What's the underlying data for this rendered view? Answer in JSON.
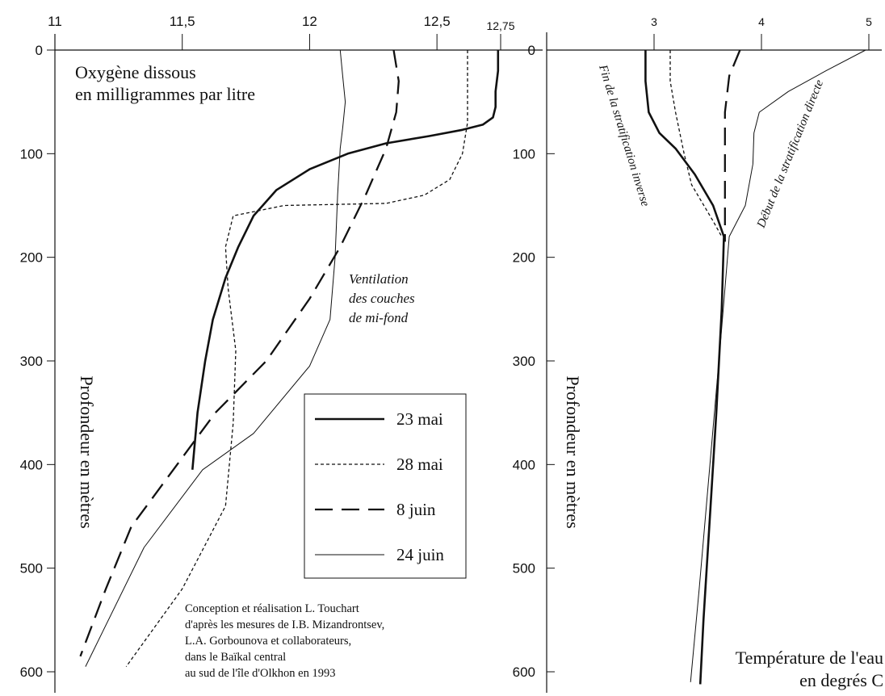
{
  "chart_data": [
    {
      "type": "line",
      "title": "Oxygène dissous\nen milligrammes par litre",
      "title_lines": [
        "Oxygène dissous",
        "en milligrammes par litre"
      ],
      "ylabel": "Profondeur en mètres",
      "xlim": [
        11,
        12.75
      ],
      "ylim": [
        0,
        620
      ],
      "y_inverted": true,
      "x_axis_position": "top",
      "x_ticks": [
        11,
        11.5,
        12,
        12.5,
        12.75
      ],
      "x_tick_labels": [
        "11",
        "11,5",
        "12",
        "12,5",
        "12,75"
      ],
      "y_ticks": [
        0,
        100,
        200,
        300,
        400,
        500,
        600
      ],
      "y_tick_labels": [
        "0",
        "100",
        "200",
        "300",
        "400",
        "500",
        "600"
      ],
      "grid": false,
      "legend_position": "center-right",
      "series": [
        {
          "name": "23 mai",
          "style": "thick-solid",
          "points": [
            [
              12.74,
              0
            ],
            [
              12.74,
              20
            ],
            [
              12.73,
              40
            ],
            [
              12.73,
              55
            ],
            [
              12.72,
              65
            ],
            [
              12.68,
              72
            ],
            [
              12.6,
              77
            ],
            [
              12.47,
              83
            ],
            [
              12.3,
              90
            ],
            [
              12.15,
              100
            ],
            [
              12.0,
              115
            ],
            [
              11.87,
              135
            ],
            [
              11.78,
              160
            ],
            [
              11.72,
              190
            ],
            [
              11.67,
              220
            ],
            [
              11.62,
              260
            ],
            [
              11.59,
              300
            ],
            [
              11.56,
              350
            ],
            [
              11.54,
              405
            ]
          ]
        },
        {
          "name": "28 mai",
          "style": "short-dash",
          "points": [
            [
              12.62,
              0
            ],
            [
              12.62,
              40
            ],
            [
              12.62,
              70
            ],
            [
              12.6,
              100
            ],
            [
              12.55,
              125
            ],
            [
              12.45,
              140
            ],
            [
              12.3,
              148
            ],
            [
              11.9,
              150
            ],
            [
              11.7,
              160
            ],
            [
              11.67,
              190
            ],
            [
              11.68,
              230
            ],
            [
              11.71,
              290
            ],
            [
              11.7,
              360
            ],
            [
              11.67,
              440
            ],
            [
              11.5,
              520
            ],
            [
              11.28,
              595
            ]
          ]
        },
        {
          "name": "8 juin",
          "style": "long-dash",
          "points": [
            [
              12.33,
              0
            ],
            [
              12.35,
              30
            ],
            [
              12.34,
              60
            ],
            [
              12.3,
              95
            ],
            [
              12.22,
              140
            ],
            [
              12.12,
              190
            ],
            [
              12.0,
              240
            ],
            [
              11.83,
              300
            ],
            [
              11.63,
              350
            ],
            [
              11.45,
              410
            ],
            [
              11.3,
              460
            ],
            [
              11.2,
              520
            ],
            [
              11.1,
              585
            ]
          ]
        },
        {
          "name": "24 juin",
          "style": "thin-solid",
          "points": [
            [
              12.12,
              0
            ],
            [
              12.13,
              25
            ],
            [
              12.14,
              50
            ],
            [
              12.13,
              75
            ],
            [
              12.12,
              95
            ],
            [
              12.11,
              140
            ],
            [
              12.1,
              200
            ],
            [
              12.08,
              260
            ],
            [
              12.0,
              305
            ],
            [
              11.78,
              370
            ],
            [
              11.58,
              405
            ],
            [
              11.35,
              480
            ],
            [
              11.12,
              595
            ]
          ]
        }
      ],
      "annotations": [
        {
          "text_lines": [
            "Ventilation",
            "des couches",
            "de mi-fond"
          ]
        }
      ],
      "credit_lines": [
        "Conception et réalisation L. Touchart",
        "d'après les mesures de I.B. Mizandrontsev,",
        "L.A. Gorbounova et collaborateurs,",
        "dans le Baïkal central",
        "au sud de l'île d'Olkhon en 1993"
      ]
    },
    {
      "type": "line",
      "title_lines": [
        "Température de l'eau",
        "en degrés C"
      ],
      "ylabel": "Profondeur en mètres",
      "xlim": [
        2,
        5
      ],
      "ylim": [
        0,
        620
      ],
      "y_inverted": true,
      "x_axis_position": "top",
      "x_ticks": [
        3,
        4,
        5
      ],
      "x_tick_labels": [
        "3",
        "4",
        "5"
      ],
      "y_ticks": [
        0,
        100,
        200,
        300,
        400,
        500,
        600
      ],
      "y_tick_labels": [
        "0",
        "100",
        "200",
        "300",
        "400",
        "500",
        "600"
      ],
      "grid": false,
      "series": [
        {
          "style": "thick-solid",
          "points": [
            [
              2.92,
              0
            ],
            [
              2.92,
              30
            ],
            [
              2.95,
              60
            ],
            [
              3.05,
              80
            ],
            [
              3.2,
              95
            ],
            [
              3.38,
              120
            ],
            [
              3.55,
              150
            ],
            [
              3.65,
              180
            ],
            [
              3.63,
              250
            ],
            [
              3.58,
              350
            ],
            [
              3.52,
              450
            ],
            [
              3.46,
              550
            ],
            [
              3.43,
              612
            ]
          ]
        },
        {
          "style": "short-dash",
          "points": [
            [
              3.15,
              0
            ],
            [
              3.15,
              30
            ],
            [
              3.2,
              60
            ],
            [
              3.28,
              100
            ],
            [
              3.35,
              130
            ],
            [
              3.55,
              165
            ],
            [
              3.63,
              180
            ]
          ]
        },
        {
          "style": "long-dash",
          "points": [
            [
              3.8,
              0
            ],
            [
              3.7,
              25
            ],
            [
              3.66,
              60
            ],
            [
              3.66,
              100
            ],
            [
              3.66,
              150
            ],
            [
              3.66,
              185
            ]
          ]
        },
        {
          "style": "thin-solid",
          "points": [
            [
              4.97,
              0
            ],
            [
              4.6,
              20
            ],
            [
              4.25,
              40
            ],
            [
              3.98,
              60
            ],
            [
              3.93,
              80
            ],
            [
              3.92,
              110
            ],
            [
              3.85,
              150
            ],
            [
              3.7,
              180
            ],
            [
              3.62,
              280
            ],
            [
              3.52,
              400
            ],
            [
              3.42,
              520
            ],
            [
              3.34,
              610
            ]
          ]
        }
      ],
      "annotations": [
        {
          "text": "Fin de la stratification inverse"
        },
        {
          "text": "Début de la stratification directe"
        }
      ]
    }
  ]
}
